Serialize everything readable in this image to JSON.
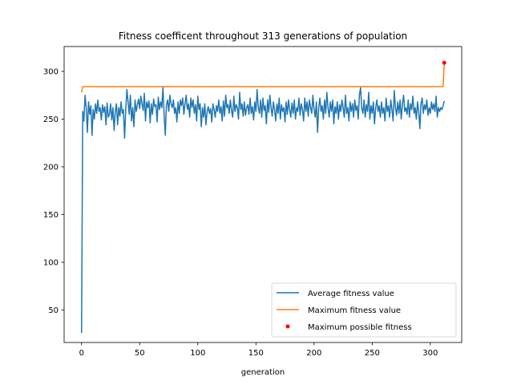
{
  "chart_data": {
    "type": "line",
    "title": "Fitness coefficent throughout 313 generations of population",
    "xlabel": "generation",
    "ylabel": "",
    "xlim": [
      -15,
      327
    ],
    "ylim": [
      16,
      326
    ],
    "x_ticks": [
      0,
      50,
      100,
      150,
      200,
      250,
      300
    ],
    "y_ticks": [
      50,
      100,
      150,
      200,
      250,
      300
    ],
    "grid": false,
    "legend_position": "lower-right",
    "series": [
      {
        "name": "Average fitness value",
        "color": "#1f77b4",
        "points": [
          [
            0,
            26
          ],
          [
            1,
            258
          ],
          [
            2,
            248
          ],
          [
            3,
            275
          ],
          [
            4,
            262
          ],
          [
            5,
            236
          ],
          [
            6,
            268
          ],
          [
            7,
            255
          ],
          [
            8,
            264
          ],
          [
            9,
            233
          ],
          [
            10,
            260
          ],
          [
            11,
            250
          ],
          [
            12,
            266
          ],
          [
            13,
            256
          ],
          [
            14,
            270
          ],
          [
            15,
            258
          ],
          [
            16,
            262
          ],
          [
            17,
            249
          ],
          [
            18,
            265
          ],
          [
            19,
            257
          ],
          [
            20,
            263
          ],
          [
            21,
            244
          ],
          [
            22,
            267
          ],
          [
            23,
            252
          ],
          [
            24,
            255
          ],
          [
            25,
            266
          ],
          [
            26,
            249
          ],
          [
            27,
            262
          ],
          [
            28,
            238
          ],
          [
            29,
            258
          ],
          [
            30,
            266
          ],
          [
            31,
            244
          ],
          [
            32,
            262
          ],
          [
            33,
            253
          ],
          [
            34,
            268
          ],
          [
            35,
            256
          ],
          [
            36,
            260
          ],
          [
            37,
            230
          ],
          [
            38,
            260
          ],
          [
            39,
            281
          ],
          [
            40,
            268
          ],
          [
            41,
            255
          ],
          [
            42,
            275
          ],
          [
            43,
            248
          ],
          [
            44,
            262
          ],
          [
            45,
            242
          ],
          [
            46,
            270
          ],
          [
            47,
            258
          ],
          [
            48,
            265
          ],
          [
            49,
            271
          ],
          [
            50,
            261
          ],
          [
            51,
            274
          ],
          [
            52,
            266
          ],
          [
            53,
            259
          ],
          [
            54,
            277
          ],
          [
            55,
            248
          ],
          [
            56,
            268
          ],
          [
            57,
            262
          ],
          [
            58,
            269
          ],
          [
            59,
            246
          ],
          [
            60,
            266
          ],
          [
            61,
            255
          ],
          [
            62,
            271
          ],
          [
            63,
            263
          ],
          [
            64,
            265
          ],
          [
            65,
            247
          ],
          [
            66,
            273
          ],
          [
            67,
            260
          ],
          [
            68,
            268
          ],
          [
            69,
            262
          ],
          [
            70,
            283
          ],
          [
            71,
            255
          ],
          [
            72,
            233
          ],
          [
            73,
            265
          ],
          [
            74,
            270
          ],
          [
            75,
            258
          ],
          [
            76,
            275
          ],
          [
            77,
            266
          ],
          [
            78,
            262
          ],
          [
            79,
            270
          ],
          [
            80,
            256
          ],
          [
            81,
            262
          ],
          [
            82,
            247
          ],
          [
            83,
            268
          ],
          [
            84,
            256
          ],
          [
            85,
            270
          ],
          [
            86,
            264
          ],
          [
            87,
            272
          ],
          [
            88,
            255
          ],
          [
            89,
            266
          ],
          [
            90,
            275
          ],
          [
            91,
            260
          ],
          [
            92,
            266
          ],
          [
            93,
            252
          ],
          [
            94,
            272
          ],
          [
            95,
            262
          ],
          [
            96,
            270
          ],
          [
            97,
            256
          ],
          [
            98,
            265
          ],
          [
            99,
            248
          ],
          [
            100,
            274
          ],
          [
            101,
            260
          ],
          [
            102,
            266
          ],
          [
            103,
            242
          ],
          [
            104,
            262
          ],
          [
            105,
            252
          ],
          [
            106,
            266
          ],
          [
            107,
            244
          ],
          [
            108,
            258
          ],
          [
            109,
            263
          ],
          [
            110,
            256
          ],
          [
            111,
            261
          ],
          [
            112,
            247
          ],
          [
            113,
            266
          ],
          [
            114,
            260
          ],
          [
            115,
            252
          ],
          [
            116,
            264
          ],
          [
            117,
            258
          ],
          [
            118,
            270
          ],
          [
            119,
            256
          ],
          [
            120,
            263
          ],
          [
            121,
            248
          ],
          [
            122,
            269
          ],
          [
            123,
            253
          ],
          [
            124,
            275
          ],
          [
            125,
            262
          ],
          [
            126,
            265
          ],
          [
            127,
            256
          ],
          [
            128,
            270
          ],
          [
            129,
            259
          ],
          [
            130,
            252
          ],
          [
            131,
            274
          ],
          [
            132,
            258
          ],
          [
            133,
            265
          ],
          [
            134,
            262
          ],
          [
            135,
            250
          ],
          [
            136,
            278
          ],
          [
            137,
            260
          ],
          [
            138,
            266
          ],
          [
            139,
            253
          ],
          [
            140,
            268
          ],
          [
            141,
            254
          ],
          [
            142,
            262
          ],
          [
            143,
            265
          ],
          [
            144,
            255
          ],
          [
            145,
            272
          ],
          [
            146,
            256
          ],
          [
            147,
            263
          ],
          [
            148,
            249
          ],
          [
            149,
            268
          ],
          [
            150,
            258
          ],
          [
            151,
            281
          ],
          [
            152,
            262
          ],
          [
            153,
            256
          ],
          [
            154,
            270
          ],
          [
            155,
            252
          ],
          [
            156,
            272
          ],
          [
            157,
            259
          ],
          [
            158,
            264
          ],
          [
            159,
            245
          ],
          [
            160,
            270
          ],
          [
            161,
            257
          ],
          [
            162,
            275
          ],
          [
            163,
            262
          ],
          [
            164,
            253
          ],
          [
            165,
            268
          ],
          [
            166,
            260
          ],
          [
            167,
            248
          ],
          [
            168,
            266
          ],
          [
            169,
            256
          ],
          [
            170,
            272
          ],
          [
            171,
            250
          ],
          [
            172,
            265
          ],
          [
            173,
            258
          ],
          [
            174,
            262
          ],
          [
            175,
            247
          ],
          [
            176,
            268
          ],
          [
            177,
            255
          ],
          [
            178,
            270
          ],
          [
            179,
            260
          ],
          [
            180,
            252
          ],
          [
            181,
            267
          ],
          [
            182,
            256
          ],
          [
            183,
            270
          ],
          [
            184,
            250
          ],
          [
            185,
            262
          ],
          [
            186,
            258
          ],
          [
            187,
            272
          ],
          [
            188,
            254
          ],
          [
            189,
            266
          ],
          [
            190,
            260
          ],
          [
            191,
            248
          ],
          [
            192,
            272
          ],
          [
            193,
            258
          ],
          [
            194,
            268
          ],
          [
            195,
            253
          ],
          [
            196,
            270
          ],
          [
            197,
            262
          ],
          [
            198,
            256
          ],
          [
            199,
            275
          ],
          [
            200,
            260
          ],
          [
            201,
            252
          ],
          [
            202,
            268
          ],
          [
            203,
            236
          ],
          [
            204,
            262
          ],
          [
            205,
            272
          ],
          [
            206,
            258
          ],
          [
            207,
            264
          ],
          [
            208,
            250
          ],
          [
            209,
            270
          ],
          [
            210,
            256
          ],
          [
            211,
            278
          ],
          [
            212,
            262
          ],
          [
            213,
            252
          ],
          [
            214,
            268
          ],
          [
            215,
            258
          ],
          [
            216,
            270
          ],
          [
            217,
            245
          ],
          [
            218,
            263
          ],
          [
            219,
            256
          ],
          [
            220,
            268
          ],
          [
            221,
            250
          ],
          [
            222,
            265
          ],
          [
            223,
            258
          ],
          [
            224,
            270
          ],
          [
            225,
            262
          ],
          [
            226,
            252
          ],
          [
            227,
            275
          ],
          [
            228,
            256
          ],
          [
            229,
            262
          ],
          [
            230,
            248
          ],
          [
            231,
            268
          ],
          [
            232,
            258
          ],
          [
            233,
            266
          ],
          [
            234,
            252
          ],
          [
            235,
            270
          ],
          [
            236,
            259
          ],
          [
            237,
            264
          ],
          [
            238,
            250
          ],
          [
            239,
            275
          ],
          [
            240,
            283
          ],
          [
            241,
            262
          ],
          [
            242,
            256
          ],
          [
            243,
            270
          ],
          [
            244,
            252
          ],
          [
            245,
            265
          ],
          [
            246,
            258
          ],
          [
            247,
            278
          ],
          [
            248,
            250
          ],
          [
            249,
            264
          ],
          [
            250,
            256
          ],
          [
            251,
            268
          ],
          [
            252,
            245
          ],
          [
            253,
            262
          ],
          [
            254,
            270
          ],
          [
            255,
            258
          ],
          [
            256,
            264
          ],
          [
            257,
            252
          ],
          [
            258,
            268
          ],
          [
            259,
            256
          ],
          [
            260,
            262
          ],
          [
            261,
            248
          ],
          [
            262,
            272
          ],
          [
            263,
            258
          ],
          [
            264,
            264
          ],
          [
            265,
            252
          ],
          [
            266,
            270
          ],
          [
            267,
            260
          ],
          [
            268,
            248
          ],
          [
            269,
            280
          ],
          [
            270,
            262
          ],
          [
            271,
            254
          ],
          [
            272,
            268
          ],
          [
            273,
            256
          ],
          [
            274,
            270
          ],
          [
            275,
            250
          ],
          [
            276,
            266
          ],
          [
            277,
            275
          ],
          [
            278,
            258
          ],
          [
            279,
            262
          ],
          [
            280,
            255
          ],
          [
            281,
            270
          ],
          [
            282,
            252
          ],
          [
            283,
            266
          ],
          [
            284,
            260
          ],
          [
            285,
            274
          ],
          [
            286,
            256
          ],
          [
            287,
            262
          ],
          [
            288,
            250
          ],
          [
            289,
            268
          ],
          [
            290,
            258
          ],
          [
            291,
            240
          ],
          [
            292,
            266
          ],
          [
            293,
            272
          ],
          [
            294,
            256
          ],
          [
            295,
            265
          ],
          [
            296,
            260
          ],
          [
            297,
            270
          ],
          [
            298,
            254
          ],
          [
            299,
            262
          ],
          [
            300,
            256
          ],
          [
            301,
            268
          ],
          [
            302,
            260
          ],
          [
            303,
            266
          ],
          [
            304,
            258
          ],
          [
            305,
            274
          ],
          [
            306,
            252
          ],
          [
            307,
            262
          ],
          [
            308,
            258
          ],
          [
            309,
            262
          ],
          [
            310,
            260
          ],
          [
            311,
            264
          ],
          [
            312,
            269
          ]
        ]
      },
      {
        "name": "Maximum fitness value",
        "color": "#ff7f0e",
        "points": [
          [
            0,
            278
          ],
          [
            1,
            284
          ],
          [
            311,
            284
          ],
          [
            312,
            309
          ]
        ]
      }
    ],
    "scatter": {
      "name": "Maximum possible fitness",
      "color": "#ff0000",
      "points": [
        [
          312,
          309
        ]
      ]
    }
  }
}
